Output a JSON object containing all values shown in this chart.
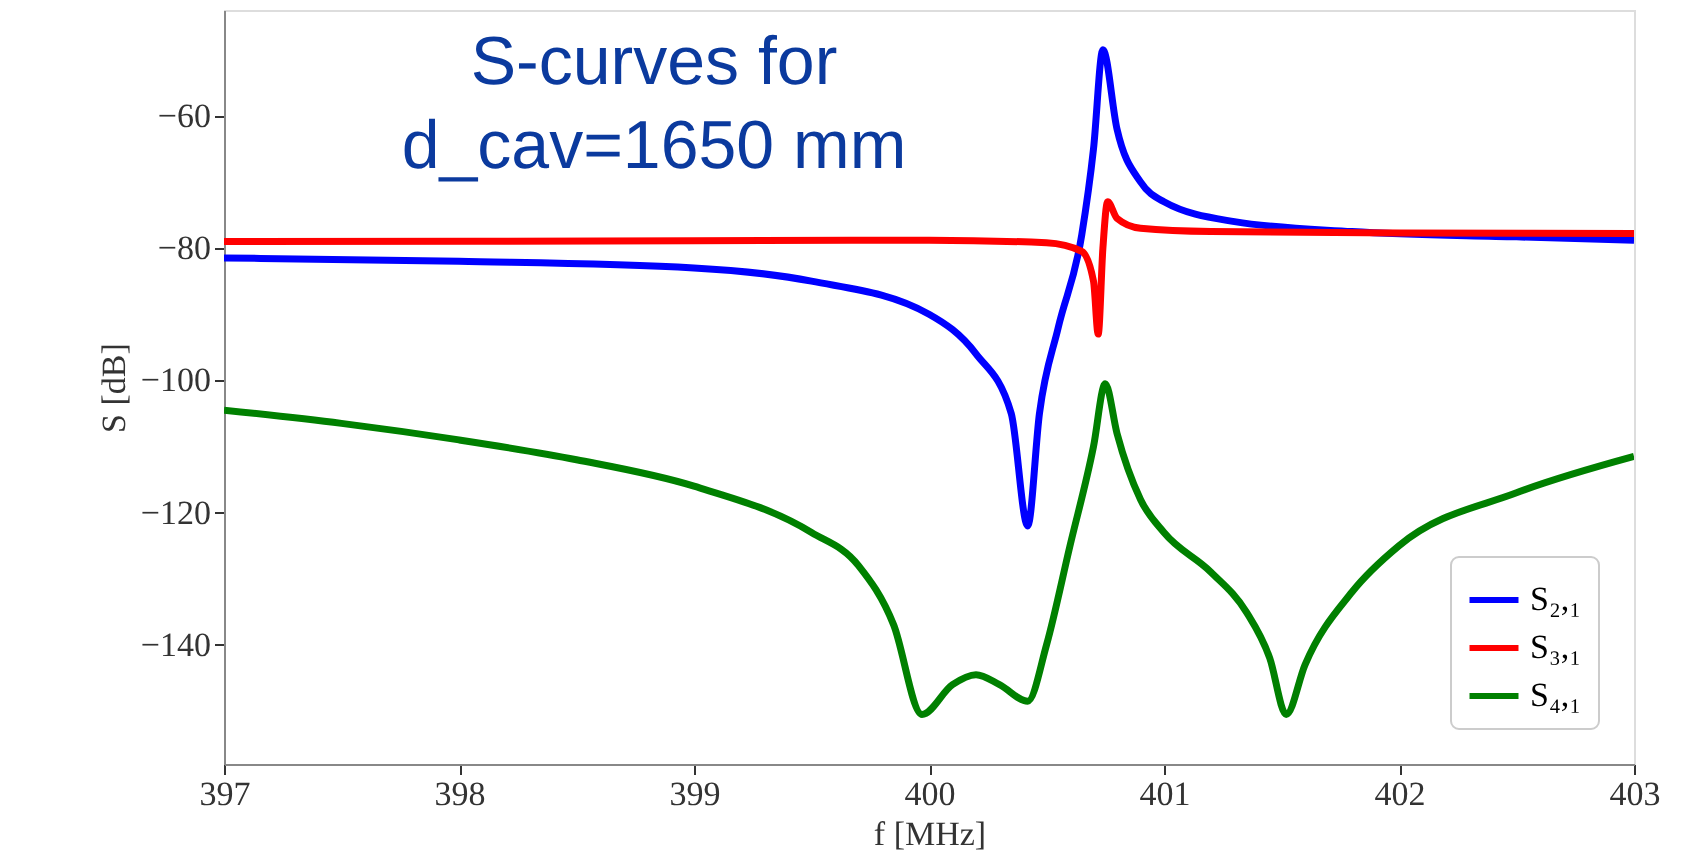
{
  "chart_data": {
    "type": "line",
    "xlabel": "f [MHz]",
    "ylabel": "S [dB]",
    "annotations": [
      "S-curves for\nd_cav=1650 mm"
    ],
    "xlim": [
      397,
      403
    ],
    "xticks": [
      397,
      398,
      399,
      400,
      401,
      402,
      403
    ],
    "ylim": [
      -158,
      -44
    ],
    "yticks": [
      -60,
      -80,
      -100,
      -120,
      -140
    ],
    "grid": false,
    "legend": "bottom right",
    "line_style": "solid",
    "marker": "none",
    "series": [
      {
        "name": "S₂,₁",
        "color": "#0000ff",
        "x": [
          397,
          398,
          399,
          399.5,
          400,
          400.2,
          400.35,
          400.42,
          400.47,
          400.55,
          400.65,
          400.7,
          400.74,
          400.8,
          400.9,
          401.0,
          401.3,
          401.8,
          402.5,
          403
        ],
        "values": [
          -81.5,
          -82,
          -83,
          -85,
          -90,
          -96,
          -105,
          -122,
          -105,
          -92,
          -78,
          -65,
          -50,
          -62,
          -70,
          -73,
          -76,
          -77.5,
          -78.3,
          -78.8
        ]
      },
      {
        "name": "S₃,₁",
        "color": "#ff0000",
        "x": [
          397,
          399,
          400,
          400.5,
          400.65,
          400.7,
          400.72,
          400.74,
          400.76,
          400.8,
          400.9,
          401.2,
          402,
          403
        ],
        "values": [
          -79,
          -78.9,
          -78.8,
          -79.2,
          -80.5,
          -85,
          -93,
          -80,
          -73,
          -75.5,
          -77,
          -77.5,
          -77.7,
          -77.8
        ]
      },
      {
        "name": "S₄,₁",
        "color": "#008000",
        "x": [
          397,
          397.5,
          398,
          398.5,
          399,
          399.5,
          399.7,
          399.85,
          399.97,
          400.1,
          400.2,
          400.3,
          400.42,
          400.5,
          400.6,
          400.7,
          400.75,
          400.8,
          400.9,
          401.0,
          401.2,
          401.35,
          401.45,
          401.52,
          401.6,
          401.8,
          402,
          402.5,
          403
        ],
        "values": [
          -104.5,
          -106.5,
          -109,
          -112,
          -116,
          -123,
          -128,
          -137,
          -150.5,
          -146,
          -144.5,
          -146,
          -148.5,
          -140,
          -125,
          -110,
          -100.5,
          -108,
          -118,
          -123,
          -129,
          -135,
          -142,
          -150.5,
          -143,
          -132,
          -125,
          -117,
          -111.5
        ]
      }
    ]
  }
}
